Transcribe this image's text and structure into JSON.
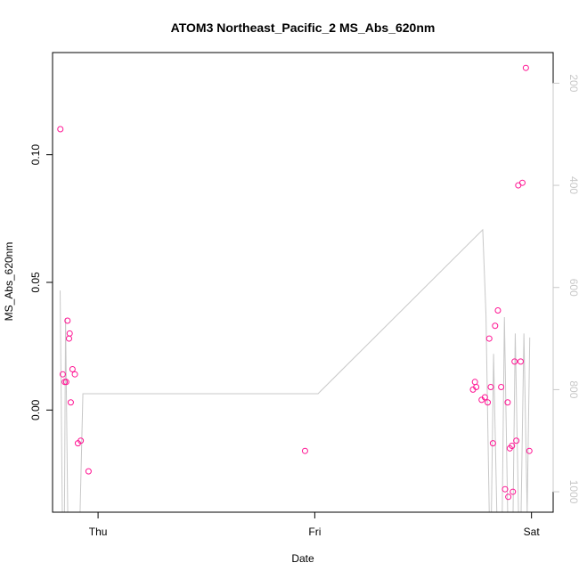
{
  "chart_data": {
    "type": "scatter",
    "title": "ATOM3 Northeast_Pacific_2 MS_Abs_620nm",
    "xlabel": "Date",
    "ylabel": "MS_Abs_620nm",
    "x_ticks": [
      {
        "label": "Thu",
        "x": 2.0
      },
      {
        "label": "Fri",
        "x": 3.0
      },
      {
        "label": "Sat",
        "x": 4.0
      }
    ],
    "xlim": [
      1.79,
      4.1
    ],
    "ylim": [
      -0.04,
      0.14
    ],
    "y_ticks": [
      {
        "label": "0.00",
        "value": 0.0
      },
      {
        "label": "0.05",
        "value": 0.05
      },
      {
        "label": "0.10",
        "value": 0.1
      }
    ],
    "y2lim": [
      1040,
      140
    ],
    "y2_ticks": [
      {
        "label": "200",
        "value": 200
      },
      {
        "label": "400",
        "value": 400
      },
      {
        "label": "600",
        "value": 600
      },
      {
        "label": "800",
        "value": 800
      },
      {
        "label": "1000",
        "value": 1000
      }
    ],
    "colors": {
      "points": "#ff1493",
      "line": "#c8c8c8",
      "axis": "#000000",
      "right_axis": "#c8c8c8"
    },
    "series": [
      {
        "kind": "points",
        "x": [
          1.826,
          1.837,
          1.846,
          1.853,
          1.859,
          1.866,
          1.874,
          1.882,
          1.907,
          1.92,
          2.955,
          3.739,
          3.77,
          3.785,
          3.798,
          3.812,
          3.832,
          3.86,
          3.878,
          3.893,
          3.914,
          3.922,
          3.939,
          3.958
        ],
        "y": [
          0.11,
          0.014,
          0.011,
          0.011,
          0.035,
          0.028,
          0.003,
          0.016,
          -0.013,
          -0.012,
          -0.016,
          0.011,
          0.004,
          0.005,
          0.003,
          0.009,
          0.033,
          0.009,
          -0.031,
          -0.034,
          -0.032,
          0.019,
          0.088,
          0.089
        ]
      },
      {
        "kind": "points",
        "x": [
          1.869,
          1.893,
          1.956,
          3.73,
          3.745,
          3.805,
          3.822,
          3.845,
          3.89,
          3.9,
          3.91,
          3.93,
          3.95,
          3.974,
          3.99
        ],
        "y": [
          0.03,
          0.014,
          -0.024,
          0.008,
          0.009,
          0.028,
          -0.013,
          0.039,
          0.003,
          -0.015,
          -0.014,
          -0.012,
          0.019,
          0.134,
          -0.016
        ]
      },
      {
        "kind": "line",
        "axis": "right",
        "x": [
          1.825,
          1.835,
          1.845,
          1.85,
          1.86,
          1.865,
          1.875,
          1.883,
          1.893,
          1.9,
          1.91,
          1.917,
          1.93,
          3.015,
          3.775,
          3.79,
          3.805,
          3.815,
          3.825,
          3.84,
          3.855,
          3.865,
          3.875,
          3.89,
          3.9,
          3.915,
          3.925,
          3.94,
          3.952,
          3.965,
          3.98,
          3.992
        ],
        "y": [
          606,
          1040,
          1040,
          660,
          1040,
          1040,
          1040,
          1040,
          1040,
          1040,
          1040,
          1040,
          808,
          808,
          487,
          654,
          1040,
          1040,
          730,
          1040,
          1040,
          1040,
          658,
          1040,
          1040,
          1040,
          690,
          1040,
          1040,
          690,
          1040,
          698
        ]
      }
    ]
  }
}
